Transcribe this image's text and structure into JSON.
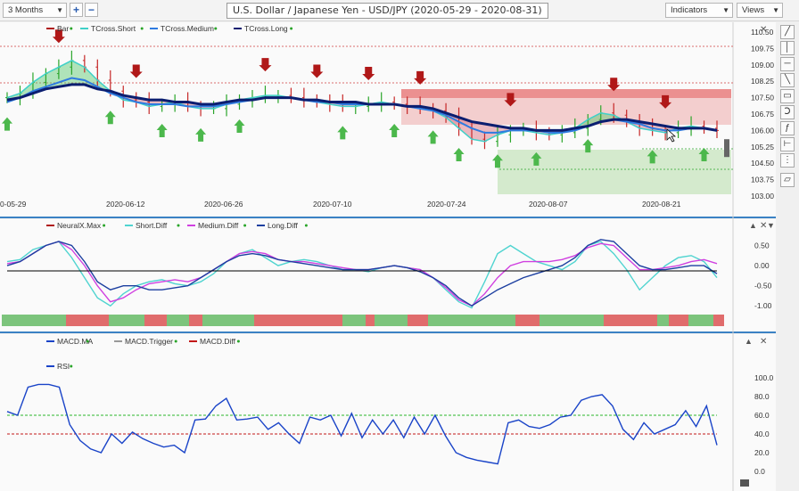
{
  "toolbar": {
    "period": "3 Months",
    "title": "U.S. Dollar / Japanese Yen - USD/JPY (2020-05-29 - 2020-08-31)",
    "indicators": "Indicators",
    "views": "Views",
    "zoom_in": "+",
    "zoom_out": "−"
  },
  "right_tools": [
    "pen-icon",
    "vertical-line-icon",
    "horizontal-line-icon",
    "slash-icon",
    "rectangle-icon",
    "magnet-icon",
    "text-icon",
    "ruler-icon",
    "grid-icon",
    "comment-icon"
  ],
  "chart_data": [
    {
      "type": "line",
      "pane": "price",
      "legend": [
        "Bar",
        "TCross.Short",
        "TCross.Medium",
        "TCross.Long"
      ],
      "y_ticks": [
        "110.50",
        "109.75",
        "109.00",
        "108.25",
        "107.50",
        "106.75",
        "106.00",
        "105.25",
        "104.50",
        "103.75",
        "103.00"
      ],
      "ylim": [
        103.0,
        110.5
      ],
      "x_ticks": [
        "0-05-29",
        "2020-06-12",
        "2020-06-26",
        "2020-07-10",
        "2020-07-24",
        "2020-08-07",
        "2020-08-21"
      ],
      "series": [
        {
          "name": "TCross.Short",
          "color": "#3fd0c8",
          "values": [
            107.5,
            107.7,
            108.2,
            108.6,
            108.9,
            109.2,
            108.9,
            108.3,
            107.8,
            107.4,
            107.3,
            107.1,
            107.2,
            107.3,
            107.1,
            107.0,
            107.0,
            107.2,
            107.4,
            107.5,
            107.6,
            107.6,
            107.5,
            107.4,
            107.3,
            107.2,
            107.1,
            107.1,
            107.2,
            107.3,
            107.2,
            107.1,
            107.0,
            106.9,
            106.6,
            106.1,
            105.6,
            105.5,
            105.8,
            106.0,
            106.0,
            105.9,
            105.8,
            105.9,
            106.1,
            106.5,
            106.8,
            106.7,
            106.4,
            106.1,
            106.0,
            105.9,
            106.1,
            106.2,
            106.1,
            106.0
          ]
        },
        {
          "name": "TCross.Medium",
          "color": "#2e7be0",
          "values": [
            107.3,
            107.5,
            107.8,
            108.0,
            108.2,
            108.4,
            108.3,
            108.0,
            107.7,
            107.5,
            107.3,
            107.2,
            107.2,
            107.2,
            107.1,
            107.1,
            107.1,
            107.2,
            107.3,
            107.4,
            107.5,
            107.5,
            107.5,
            107.4,
            107.3,
            107.3,
            107.2,
            107.2,
            107.2,
            107.2,
            107.2,
            107.1,
            107.0,
            106.9,
            106.7,
            106.4,
            106.1,
            105.9,
            105.9,
            106.0,
            106.0,
            106.0,
            105.9,
            105.9,
            106.0,
            106.2,
            106.4,
            106.5,
            106.4,
            106.3,
            106.1,
            106.0,
            106.0,
            106.1,
            106.1,
            106.0
          ]
        },
        {
          "name": "TCross.Long",
          "color": "#0b1e70",
          "values": [
            107.4,
            107.5,
            107.7,
            107.9,
            108.0,
            108.1,
            108.1,
            107.9,
            107.8,
            107.6,
            107.5,
            107.4,
            107.4,
            107.3,
            107.3,
            107.2,
            107.2,
            107.3,
            107.4,
            107.4,
            107.5,
            107.5,
            107.5,
            107.4,
            107.4,
            107.3,
            107.3,
            107.3,
            107.2,
            107.2,
            107.2,
            107.1,
            107.1,
            107.0,
            106.8,
            106.6,
            106.4,
            106.3,
            106.2,
            106.1,
            106.1,
            106.0,
            106.0,
            106.0,
            106.1,
            106.2,
            106.4,
            106.5,
            106.5,
            106.4,
            106.3,
            106.2,
            106.1,
            106.1,
            106.1,
            106.0
          ]
        }
      ]
    },
    {
      "type": "line",
      "pane": "neural",
      "legend": [
        "NeuralX.Max",
        "Short.Diff",
        "Medium.Diff",
        "Long.Diff"
      ],
      "y_ticks": [
        "0.50",
        "0.00",
        "-0.50",
        "-1.00"
      ],
      "ylim": [
        -1.15,
        0.8
      ],
      "series": [
        {
          "name": "Short.Diff",
          "color": "#4fd4d0",
          "values": [
            0.1,
            0.15,
            0.4,
            0.5,
            0.6,
            0.2,
            -0.3,
            -0.8,
            -1.0,
            -0.7,
            -0.5,
            -0.4,
            -0.35,
            -0.45,
            -0.5,
            -0.4,
            -0.2,
            0.1,
            0.3,
            0.4,
            0.2,
            0.0,
            0.1,
            0.15,
            0.1,
            0.0,
            -0.1,
            -0.1,
            -0.15,
            -0.05,
            0.0,
            -0.05,
            -0.1,
            -0.3,
            -0.6,
            -0.9,
            -1.05,
            -0.4,
            0.3,
            0.5,
            0.3,
            0.1,
            0.0,
            -0.1,
            0.1,
            0.5,
            0.6,
            0.3,
            -0.1,
            -0.6,
            -0.3,
            0.0,
            0.2,
            0.25,
            0.1,
            -0.3
          ]
        },
        {
          "name": "Medium.Diff",
          "color": "#d040e0",
          "values": [
            0.05,
            0.1,
            0.3,
            0.5,
            0.6,
            0.4,
            0.0,
            -0.5,
            -0.9,
            -0.8,
            -0.6,
            -0.45,
            -0.4,
            -0.35,
            -0.4,
            -0.3,
            -0.1,
            0.1,
            0.3,
            0.35,
            0.3,
            0.15,
            0.1,
            0.1,
            0.05,
            0.0,
            -0.05,
            -0.1,
            -0.1,
            -0.05,
            0.0,
            -0.05,
            -0.1,
            -0.3,
            -0.55,
            -0.85,
            -1.0,
            -0.7,
            -0.3,
            0.0,
            0.1,
            0.1,
            0.1,
            0.15,
            0.25,
            0.45,
            0.55,
            0.5,
            0.2,
            -0.1,
            -0.1,
            -0.05,
            0.0,
            0.1,
            0.15,
            0.05
          ]
        },
        {
          "name": "Long.Diff",
          "color": "#1c3fa0",
          "values": [
            0.0,
            0.1,
            0.3,
            0.5,
            0.6,
            0.5,
            0.1,
            -0.4,
            -0.6,
            -0.5,
            -0.5,
            -0.6,
            -0.6,
            -0.55,
            -0.5,
            -0.3,
            -0.1,
            0.1,
            0.25,
            0.3,
            0.25,
            0.15,
            0.1,
            0.05,
            0.0,
            -0.05,
            -0.1,
            -0.1,
            -0.1,
            -0.05,
            0.0,
            -0.05,
            -0.15,
            -0.3,
            -0.5,
            -0.8,
            -1.0,
            -0.8,
            -0.6,
            -0.45,
            -0.3,
            -0.2,
            -0.1,
            0.0,
            0.2,
            0.5,
            0.65,
            0.6,
            0.3,
            0.0,
            -0.1,
            -0.1,
            -0.05,
            0.0,
            0.0,
            -0.2
          ]
        }
      ]
    },
    {
      "type": "line",
      "pane": "rsi",
      "legend": [
        "MACD.MA",
        "MACD.Trigger",
        "MACD.Diff",
        "RSI"
      ],
      "y_ticks": [
        "100.0",
        "80.0",
        "60.0",
        "40.0",
        "20.0",
        "0.0"
      ],
      "ylim": [
        0,
        100
      ],
      "reference_lines": [
        {
          "value": 60,
          "color": "#2ab52a"
        },
        {
          "value": 40,
          "color": "#c21818"
        }
      ],
      "series": [
        {
          "name": "RSI",
          "color": "#1a44c8",
          "values": [
            64,
            60,
            90,
            93,
            93,
            90,
            50,
            33,
            24,
            20,
            40,
            30,
            42,
            35,
            30,
            26,
            28,
            20,
            55,
            56,
            70,
            78,
            55,
            56,
            58,
            45,
            52,
            40,
            30,
            58,
            55,
            60,
            38,
            62,
            36,
            55,
            40,
            55,
            36,
            58,
            40,
            60,
            38,
            20,
            15,
            12,
            10,
            8,
            52,
            55,
            48,
            46,
            50,
            58,
            60,
            76,
            80,
            82,
            70,
            45,
            34,
            52,
            40,
            45,
            50,
            65,
            48,
            70,
            28
          ]
        }
      ]
    }
  ]
}
